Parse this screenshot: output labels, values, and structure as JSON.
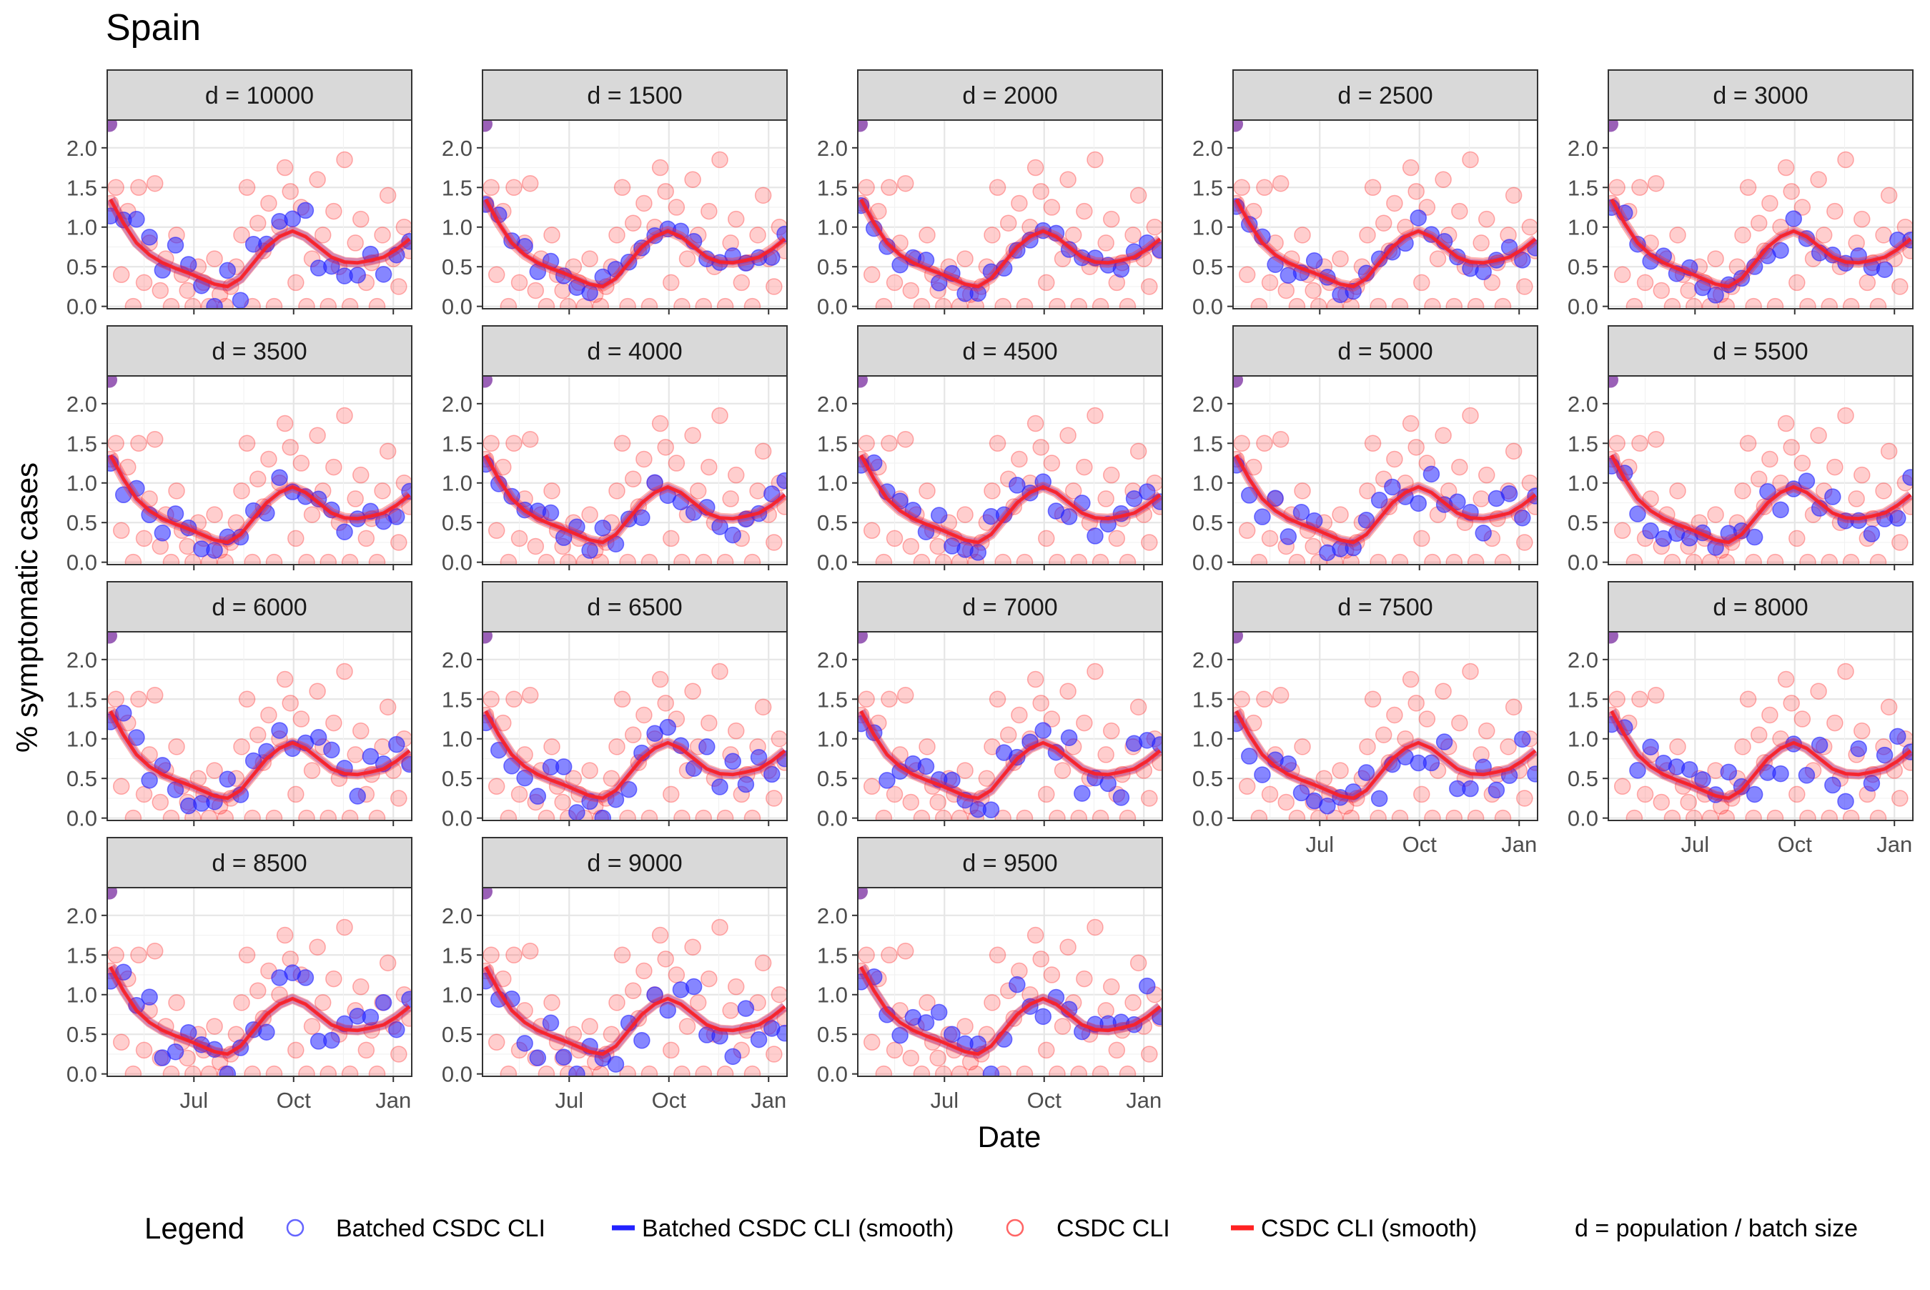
{
  "figure": {
    "title": "Spain",
    "xlabel": "Date",
    "ylabel": "% symptomatic cases",
    "legend": {
      "title": "Legend",
      "items": [
        {
          "label": "Batched CSDC CLI",
          "kind": "point",
          "color": "#2222ff"
        },
        {
          "label": "Batched CSDC CLI (smooth)",
          "kind": "line",
          "color": "#2222ff"
        },
        {
          "label": "CSDC CLI",
          "kind": "point",
          "color": "#ff2222"
        },
        {
          "label": "CSDC CLI (smooth)",
          "kind": "line",
          "color": "#ff2222"
        }
      ],
      "note": "d = population / batch size",
      "placement": "bottom"
    }
  },
  "chart_data": {
    "type": "scatter",
    "facet_layout": {
      "rows": 4,
      "cols": 5
    },
    "x_ticks": [
      "Jul",
      "Oct",
      "Jan"
    ],
    "x_range": [
      "2020-04-12",
      "2021-01-18"
    ],
    "y_ticks": [
      "0.0",
      "0.5",
      "1.0",
      "1.5",
      "2.0"
    ],
    "ylim": [
      -0.03,
      2.35
    ],
    "grid": true,
    "colors": {
      "batched": "#2222ff",
      "csdc": "#ff2222",
      "overlap": "#8844aa",
      "strip": "#d9d9d9"
    },
    "x_dates": [
      "2020-04-15",
      "2020-04-27",
      "2020-05-09",
      "2020-05-21",
      "2020-06-02",
      "2020-06-14",
      "2020-06-26",
      "2020-07-08",
      "2020-07-20",
      "2020-08-01",
      "2020-08-13",
      "2020-08-25",
      "2020-09-06",
      "2020-09-18",
      "2020-09-30",
      "2020-10-12",
      "2020-10-24",
      "2020-11-05",
      "2020-11-17",
      "2020-11-29",
      "2020-12-11",
      "2020-12-23",
      "2021-01-04",
      "2021-01-16"
    ],
    "csdc_smooth": [
      1.35,
      1.05,
      0.8,
      0.65,
      0.55,
      0.48,
      0.42,
      0.35,
      0.28,
      0.25,
      0.35,
      0.55,
      0.75,
      0.88,
      0.95,
      0.88,
      0.75,
      0.62,
      0.56,
      0.55,
      0.58,
      0.62,
      0.72,
      0.85
    ],
    "csdc_points": [
      [
        "2020-04-15",
        1.3
      ],
      [
        "2020-04-20",
        1.5
      ],
      [
        "2020-04-25",
        0.4
      ],
      [
        "2020-05-01",
        1.2
      ],
      [
        "2020-05-06",
        0.0
      ],
      [
        "2020-05-11",
        1.5
      ],
      [
        "2020-05-16",
        0.3
      ],
      [
        "2020-05-21",
        0.8
      ],
      [
        "2020-05-26",
        1.55
      ],
      [
        "2020-05-31",
        0.2
      ],
      [
        "2020-06-05",
        0.6
      ],
      [
        "2020-06-10",
        0.0
      ],
      [
        "2020-06-15",
        0.9
      ],
      [
        "2020-06-20",
        0.4
      ],
      [
        "2020-06-25",
        0.2
      ],
      [
        "2020-06-30",
        0.0
      ],
      [
        "2020-07-05",
        0.5
      ],
      [
        "2020-07-10",
        0.3
      ],
      [
        "2020-07-15",
        0.0
      ],
      [
        "2020-07-20",
        0.6
      ],
      [
        "2020-07-25",
        0.15
      ],
      [
        "2020-07-30",
        0.0
      ],
      [
        "2020-08-04",
        0.25
      ],
      [
        "2020-08-09",
        0.5
      ],
      [
        "2020-08-14",
        0.9
      ],
      [
        "2020-08-19",
        1.5
      ],
      [
        "2020-08-24",
        0.0
      ],
      [
        "2020-08-29",
        1.05
      ],
      [
        "2020-09-03",
        0.7
      ],
      [
        "2020-09-08",
        1.3
      ],
      [
        "2020-09-13",
        0.0
      ],
      [
        "2020-09-18",
        1.0
      ],
      [
        "2020-09-23",
        1.75
      ],
      [
        "2020-09-28",
        1.45
      ],
      [
        "2020-10-03",
        0.3
      ],
      [
        "2020-10-08",
        1.25
      ],
      [
        "2020-10-13",
        0.0
      ],
      [
        "2020-10-18",
        0.6
      ],
      [
        "2020-10-23",
        1.6
      ],
      [
        "2020-10-28",
        0.9
      ],
      [
        "2020-11-02",
        0.0
      ],
      [
        "2020-11-07",
        1.2
      ],
      [
        "2020-11-12",
        0.5
      ],
      [
        "2020-11-17",
        1.85
      ],
      [
        "2020-11-22",
        0.0
      ],
      [
        "2020-11-27",
        0.8
      ],
      [
        "2020-12-02",
        1.1
      ],
      [
        "2020-12-07",
        0.3
      ],
      [
        "2020-12-12",
        0.55
      ],
      [
        "2020-12-17",
        0.0
      ],
      [
        "2020-12-22",
        0.9
      ],
      [
        "2020-12-27",
        1.4
      ],
      [
        "2021-01-01",
        0.6
      ],
      [
        "2021-01-06",
        0.25
      ],
      [
        "2021-01-11",
        1.0
      ],
      [
        "2021-01-16",
        0.7
      ]
    ],
    "facets": [
      {
        "label": "d = 10000",
        "amp": 1.6,
        "seed": 3,
        "x_axis": false
      },
      {
        "label": "d = 1500",
        "amp": 0.5,
        "seed": 7,
        "x_axis": false
      },
      {
        "label": "d = 2000",
        "amp": 0.6,
        "seed": 11,
        "x_axis": false
      },
      {
        "label": "d = 2500",
        "amp": 0.7,
        "seed": 13,
        "x_axis": false
      },
      {
        "label": "d = 3000",
        "amp": 0.8,
        "seed": 17,
        "x_axis": false
      },
      {
        "label": "d = 3500",
        "amp": 0.8,
        "seed": 19,
        "x_axis": false
      },
      {
        "label": "d = 4000",
        "amp": 0.9,
        "seed": 23,
        "x_axis": false
      },
      {
        "label": "d = 4500",
        "amp": 1.0,
        "seed": 29,
        "x_axis": false
      },
      {
        "label": "d = 5000",
        "amp": 1.0,
        "seed": 31,
        "x_axis": false
      },
      {
        "label": "d = 5500",
        "amp": 1.1,
        "seed": 37,
        "x_axis": false
      },
      {
        "label": "d = 6000",
        "amp": 1.1,
        "seed": 41,
        "x_axis": false
      },
      {
        "label": "d = 6500",
        "amp": 1.2,
        "seed": 43,
        "x_axis": false
      },
      {
        "label": "d = 7000",
        "amp": 1.3,
        "seed": 47,
        "x_axis": false
      },
      {
        "label": "d = 7500",
        "amp": 1.3,
        "seed": 53,
        "x_axis": true
      },
      {
        "label": "d = 8000",
        "amp": 1.4,
        "seed": 59,
        "x_axis": true
      },
      {
        "label": "d = 8500",
        "amp": 1.5,
        "seed": 61,
        "x_axis": true
      },
      {
        "label": "d = 9000",
        "amp": 1.5,
        "seed": 67,
        "x_axis": true
      },
      {
        "label": "d = 9500",
        "amp": 1.6,
        "seed": 71,
        "x_axis": true
      }
    ]
  }
}
